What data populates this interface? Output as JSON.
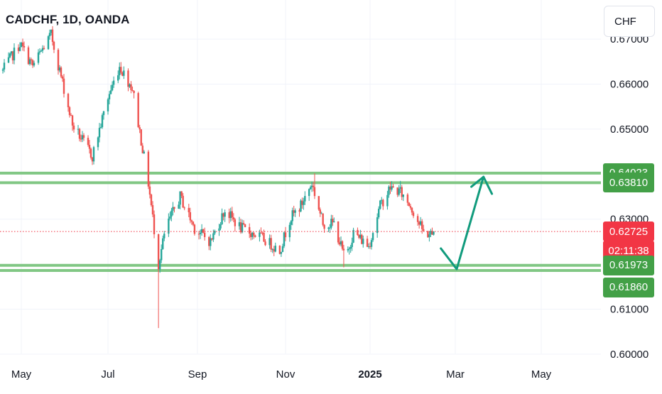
{
  "header": {
    "symbol_title": "CADCHF, 1D, OANDA"
  },
  "toolbar": {
    "currency_label": "CHF",
    "currency_icon": "currency-selector"
  },
  "colors": {
    "up": "#26a69a",
    "down": "#ef5350",
    "level_line": "#81c784",
    "level_badge": "#43a047",
    "last_price_badge": "#f23645",
    "arrow": "#119b7d",
    "grid": "#f0f3fa",
    "axis_text": "#131722"
  },
  "price_axis": {
    "ticks": [
      "0.67000",
      "0.66000",
      "0.65000",
      "0.63000",
      "0.61000",
      "0.60000"
    ],
    "badges": [
      {
        "label": "0.64023",
        "type": "level"
      },
      {
        "label": "0.63810",
        "type": "level"
      },
      {
        "label": "0.62725",
        "type": "last"
      },
      {
        "label": "02:11:38",
        "type": "countdown"
      },
      {
        "label": "0.61973",
        "type": "level"
      },
      {
        "label": "0.61860",
        "type": "level"
      }
    ]
  },
  "time_axis": {
    "labels": [
      "May",
      "Jul",
      "Sep",
      "Nov",
      "2025",
      "Mar",
      "May"
    ]
  },
  "chart_data": {
    "type": "candlestick",
    "title": "CADCHF, 1D, OANDA",
    "y_unit": "CHF",
    "ylim": [
      0.6,
      0.6734
    ],
    "grid": true,
    "x_labels": [
      "May",
      "Jul",
      "Sep",
      "Nov",
      "2025",
      "Mar",
      "May"
    ],
    "resistance_zone": [
      0.6381,
      0.64023
    ],
    "support_zone": [
      0.6186,
      0.61973
    ],
    "last_price": 0.62725,
    "bar_countdown": "02:11:38",
    "projection": [
      {
        "date": "2025-02-19",
        "value": 0.6235
      },
      {
        "date": "2025-03-02",
        "value": 0.6189
      },
      {
        "date": "2025-03-21",
        "value": 0.6394
      },
      {
        "date": "2025-03-27",
        "value": 0.6372
      }
    ],
    "close_path": [
      {
        "date": "2024-04-18",
        "value": 0.663
      },
      {
        "date": "2024-04-30",
        "value": 0.669
      },
      {
        "date": "2024-05-09",
        "value": 0.664
      },
      {
        "date": "2024-05-22",
        "value": 0.671
      },
      {
        "date": "2024-06-06",
        "value": 0.651
      },
      {
        "date": "2024-06-20",
        "value": 0.644
      },
      {
        "date": "2024-07-01",
        "value": 0.657
      },
      {
        "date": "2024-07-09",
        "value": 0.664
      },
      {
        "date": "2024-07-18",
        "value": 0.659
      },
      {
        "date": "2024-07-29",
        "value": 0.638
      },
      {
        "date": "2024-08-05",
        "value": 0.62
      },
      {
        "date": "2024-08-10",
        "value": 0.628
      },
      {
        "date": "2024-08-20",
        "value": 0.635
      },
      {
        "date": "2024-08-30",
        "value": 0.628
      },
      {
        "date": "2024-09-10",
        "value": 0.625
      },
      {
        "date": "2024-09-20",
        "value": 0.632
      },
      {
        "date": "2024-10-01",
        "value": 0.628
      },
      {
        "date": "2024-10-15",
        "value": 0.626
      },
      {
        "date": "2024-10-28",
        "value": 0.623
      },
      {
        "date": "2024-11-04",
        "value": 0.63
      },
      {
        "date": "2024-11-12",
        "value": 0.633
      },
      {
        "date": "2024-11-20",
        "value": 0.638
      },
      {
        "date": "2024-11-28",
        "value": 0.629
      },
      {
        "date": "2024-12-06",
        "value": 0.629
      },
      {
        "date": "2024-12-14",
        "value": 0.621
      },
      {
        "date": "2024-12-20",
        "value": 0.627
      },
      {
        "date": "2024-12-31",
        "value": 0.624
      },
      {
        "date": "2025-01-08",
        "value": 0.633
      },
      {
        "date": "2025-01-15",
        "value": 0.637
      },
      {
        "date": "2025-01-22",
        "value": 0.636
      },
      {
        "date": "2025-01-29",
        "value": 0.633
      },
      {
        "date": "2025-02-07",
        "value": 0.627
      },
      {
        "date": "2025-02-14",
        "value": 0.6265
      }
    ],
    "extremes": [
      {
        "date": "2024-05-22",
        "value": 0.6715,
        "kind": "high"
      },
      {
        "date": "2024-08-05",
        "value": 0.6058,
        "kind": "low"
      },
      {
        "date": "2024-11-22",
        "value": 0.6402,
        "kind": "high"
      },
      {
        "date": "2024-12-13",
        "value": 0.6193,
        "kind": "low"
      },
      {
        "date": "2025-01-22",
        "value": 0.6385,
        "kind": "high"
      }
    ]
  }
}
